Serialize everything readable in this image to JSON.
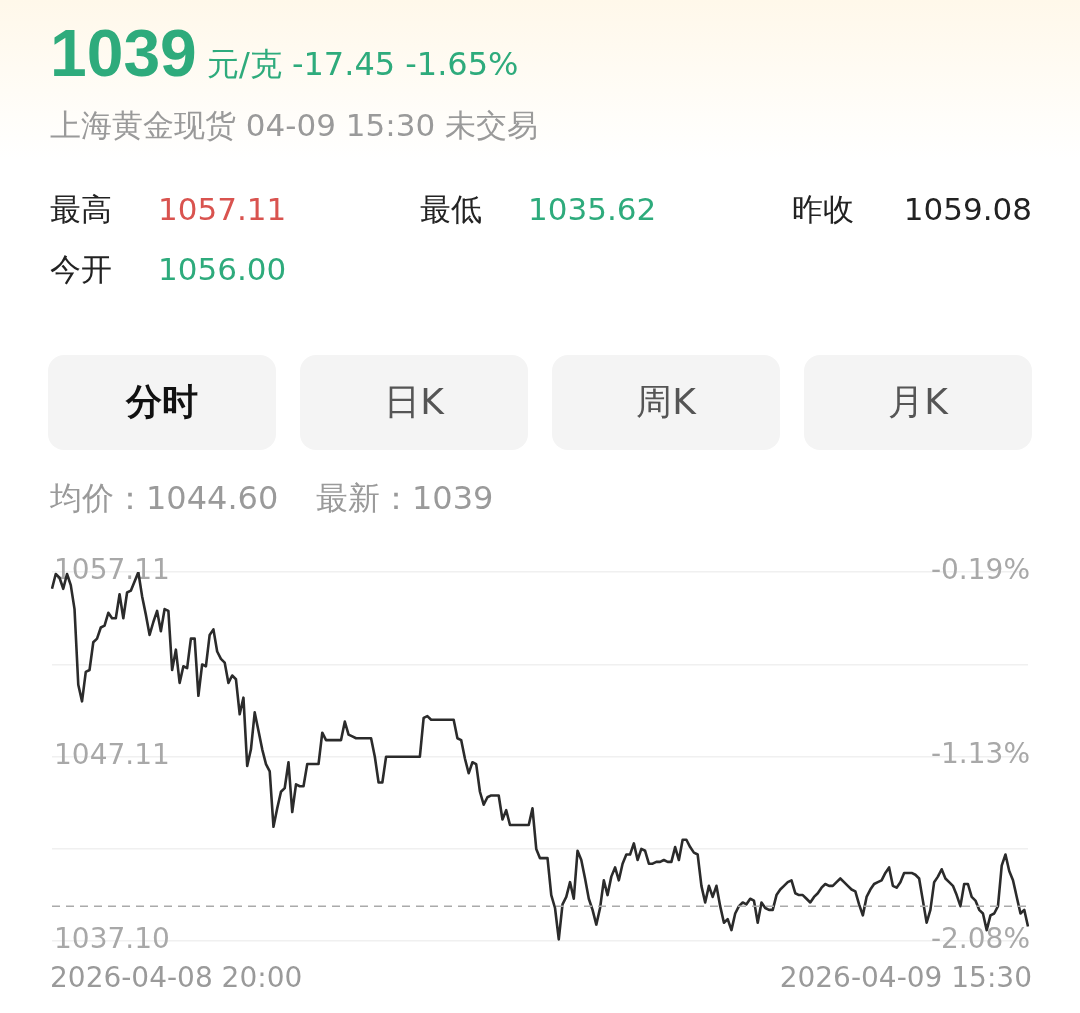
{
  "chart_data": {
    "type": "line",
    "title": "1039",
    "subtitle": "上海黄金现货 04-09 15:30 未交易",
    "annotations": [
      "元/克 -17.45 -1.65%",
      "最高",
      "1057.11",
      "最低",
      "1035.62",
      "昨收",
      "1059.08",
      "今开",
      "1056.00",
      "分时",
      "日K",
      "周K",
      "月K",
      "均价：1044.60",
      "最新：1039",
      "2026-04-08 20:00",
      "2026-04-09 15:30"
    ],
    "categories": [
      null,
      null,
      null,
      null,
      null,
      null,
      null,
      null,
      null,
      null,
      null,
      null,
      null,
      null,
      null,
      null,
      null,
      null,
      null,
      null,
      null,
      null,
      null,
      null,
      null,
      null,
      null,
      null,
      null,
      null,
      null,
      null,
      null,
      null,
      null,
      null,
      null,
      null,
      null,
      null,
      null,
      null,
      null,
      null,
      null,
      null,
      null,
      null,
      null,
      null,
      null,
      null,
      null,
      null,
      null,
      null,
      null,
      null,
      null,
      null,
      null,
      null,
      null,
      null,
      null,
      null,
      null,
      null,
      null,
      null,
      null,
      null,
      null,
      null,
      null,
      null,
      null,
      null,
      null,
      null,
      null,
      null,
      null,
      null,
      null,
      null,
      null,
      null,
      null,
      null,
      null,
      null,
      null,
      null,
      null,
      null,
      null,
      null,
      null,
      null,
      null,
      null,
      null,
      null,
      null,
      null,
      null,
      null,
      null,
      null,
      null,
      null,
      null,
      null,
      null,
      null,
      null,
      null,
      null,
      null,
      null,
      null,
      null,
      null,
      null,
      null,
      null,
      null,
      null,
      null,
      null,
      null,
      null,
      null,
      null,
      null,
      null,
      null,
      null,
      null,
      null,
      null,
      null,
      null,
      null,
      null,
      null,
      null,
      null,
      null,
      null,
      null,
      null,
      null,
      null,
      null,
      null,
      null,
      null,
      null,
      null,
      null,
      null,
      null,
      null,
      null,
      null,
      null,
      null,
      null,
      null,
      null,
      null,
      null,
      null,
      null,
      null,
      null,
      null,
      null,
      null,
      null,
      null,
      null,
      null,
      null,
      null,
      null,
      null,
      null,
      null,
      null,
      null,
      null,
      null,
      null,
      null,
      null,
      null,
      null,
      null,
      null,
      null,
      null,
      null,
      null,
      null,
      null,
      null,
      null,
      null,
      null,
      null,
      null,
      null,
      null,
      null,
      null,
      null,
      null,
      null,
      null,
      null,
      null,
      null,
      null,
      null,
      null,
      null,
      null,
      null,
      null,
      null,
      null,
      null,
      null,
      null,
      null,
      null,
      null,
      null,
      null,
      null,
      null,
      null,
      null,
      null,
      null,
      null,
      null,
      null,
      null,
      null,
      null,
      null,
      null,
      null,
      null,
      null,
      null,
      null
    ],
    "series": [
      {
        "color": "#2b2b2b",
        "values": [
          1056.2,
          1057.0,
          1056.8,
          1056.2,
          1057.0,
          1056.4,
          1055.1,
          1051.0,
          1050.1,
          1051.7,
          1051.8,
          1053.3,
          1053.5,
          1054.1,
          1054.2,
          1054.9,
          1054.6,
          1054.6,
          1055.9,
          1054.6,
          1056.0,
          1056.1,
          1056.6,
          1057.1,
          1055.8,
          1054.8,
          1053.7,
          1054.4,
          1055.0,
          1053.9,
          1055.1,
          1055.0,
          1051.8,
          1052.9,
          1051.1,
          1052.0,
          1051.9,
          1053.5,
          1053.5,
          1050.4,
          1052.1,
          1052.0,
          1053.7,
          1054.0,
          1052.8,
          1052.4,
          1052.2,
          1051.1,
          1051.5,
          1051.3,
          1049.4,
          1050.3,
          1046.6,
          1047.5,
          1049.5,
          1048.5,
          1047.5,
          1046.7,
          1046.3,
          1043.3,
          1044.3,
          1045.2,
          1045.4,
          1046.8,
          1044.1,
          1045.6,
          1045.5,
          1045.5,
          1046.7,
          1046.7,
          1046.7,
          1046.7,
          1048.4,
          1048.0,
          1048.0,
          1048.0,
          1048.0,
          1048.0,
          1049.0,
          1048.3,
          1048.2,
          1048.1,
          1048.1,
          1048.1,
          1048.1,
          1048.1,
          1047.1,
          1045.7,
          1045.7,
          1047.1,
          1047.1,
          1047.1,
          1047.1,
          1047.1,
          1047.1,
          1047.1,
          1047.1,
          1047.1,
          1047.1,
          1049.2,
          1049.3,
          1049.1,
          1049.1,
          1049.1,
          1049.1,
          1049.1,
          1049.1,
          1049.1,
          1048.1,
          1048.0,
          1047.0,
          1046.2,
          1046.8,
          1046.7,
          1045.2,
          1044.5,
          1044.9,
          1045.0,
          1045.0,
          1045.0,
          1043.7,
          1044.2,
          1043.4,
          1043.4,
          1043.4,
          1043.4,
          1043.4,
          1043.4,
          1044.3,
          1042.1,
          1041.6,
          1041.6,
          1041.6,
          1039.6,
          1038.9,
          1037.2,
          1039.1,
          1039.5,
          1040.3,
          1039.4,
          1042.0,
          1041.5,
          1040.5,
          1039.4,
          1038.8,
          1038.0,
          1038.9,
          1040.4,
          1039.6,
          1040.6,
          1041.1,
          1040.4,
          1041.3,
          1041.8,
          1041.8,
          1042.4,
          1041.5,
          1042.1,
          1042.0,
          1041.3,
          1041.3,
          1041.4,
          1041.4,
          1041.5,
          1041.4,
          1041.4,
          1042.2,
          1041.5,
          1042.6,
          1042.6,
          1042.2,
          1041.9,
          1041.8,
          1040.1,
          1039.2,
          1040.1,
          1039.5,
          1040.1,
          1039.0,
          1038.1,
          1038.3,
          1037.7,
          1038.6,
          1039.0,
          1039.2,
          1039.1,
          1039.4,
          1039.3,
          1038.1,
          1039.2,
          1038.9,
          1038.8,
          1038.8,
          1039.6,
          1039.9,
          1040.1,
          1040.3,
          1040.4,
          1039.7,
          1039.6,
          1039.6,
          1039.4,
          1039.2,
          1039.5,
          1039.7,
          1040.0,
          1040.2,
          1040.1,
          1040.1,
          1040.3,
          1040.5,
          1040.3,
          1040.1,
          1039.9,
          1039.8,
          1039.1,
          1038.5,
          1039.5,
          1039.9,
          1040.2,
          1040.3,
          1040.4,
          1040.8,
          1041.1,
          1040.1,
          1040.0,
          1040.3,
          1040.8,
          1040.8,
          1040.8,
          1040.7,
          1040.5,
          1039.3,
          1038.1,
          1038.8,
          1040.3,
          1040.6,
          1041.0,
          1040.5,
          1040.3,
          1040.1,
          1039.6,
          1039.0,
          1040.2,
          1040.2,
          1039.5,
          1039.3,
          1038.8,
          1038.6,
          1037.7,
          1038.5,
          1038.6,
          1039.0,
          1041.2,
          1041.8,
          1040.9,
          1040.4,
          1039.5,
          1038.6,
          1038.8,
          1037.9
        ]
      }
    ],
    "ylim": [
      1037.1,
      1057.11
    ],
    "yticks": [
      1057.11,
      {
        "value": 1052.11,
        "label": null
      },
      1047.11,
      {
        "value": 1042.1,
        "label": null
      },
      {
        "value": 1037.1,
        "label": "1037.10"
      }
    ],
    "y2lim": [
      -2.08,
      -0.19
    ],
    "y2ticks": [
      {
        "value": -0.19,
        "label": "-0.19%"
      },
      {
        "value": -1.13,
        "label": "-1.13%"
      },
      {
        "value": -2.08,
        "label": "-2.08%"
      }
    ],
    "ref_lines": [
      {
        "axis": "y",
        "value": 1039,
        "color": "#aaaaaa",
        "line_style": "dashed"
      }
    ],
    "grid": "y",
    "legend": false,
    "marker": "none",
    "line_style": "solid"
  }
}
